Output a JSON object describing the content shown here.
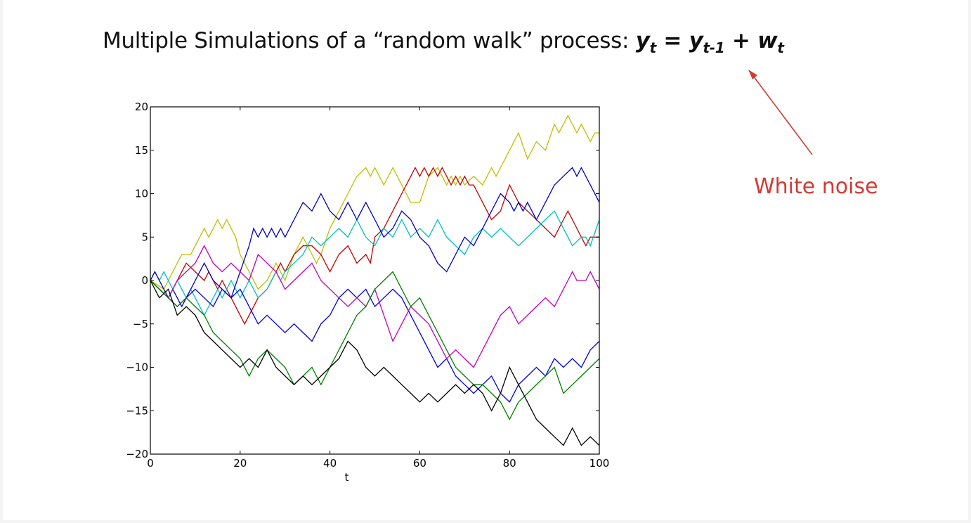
{
  "slide": {
    "title_prefix": "Multiple Simulations of a “random walk” process: ",
    "eq_y": "y",
    "eq_y_sub": "t",
    "eq_eq": " = ",
    "eq_y2": "y",
    "eq_y2_sub": "t-1",
    "eq_plus": " + ",
    "eq_w": "w",
    "eq_w_sub": "t",
    "annotation": "White noise",
    "annotation_color": "#d33a35"
  },
  "chart_data": {
    "type": "line",
    "title": "",
    "xlabel": "t",
    "ylabel": "",
    "xlim": [
      0,
      100
    ],
    "ylim": [
      -20,
      20
    ],
    "xticks": [
      "0",
      "20",
      "40",
      "60",
      "80",
      "100"
    ],
    "yticks": [
      "20",
      "15",
      "10",
      "5",
      "0",
      "−5",
      "−10",
      "−15",
      "−20"
    ],
    "grid": false,
    "legend": "none",
    "series": [
      {
        "color": "#bfbf00",
        "x": [
          0,
          3,
          5,
          7,
          9,
          11,
          12,
          13,
          14,
          15,
          16,
          17,
          18,
          19,
          20,
          22,
          24,
          26,
          28,
          30,
          32,
          34,
          35,
          36,
          37,
          38,
          40,
          42,
          44,
          46,
          48,
          49,
          50,
          51,
          52,
          53,
          54,
          56,
          58,
          60,
          62,
          64,
          65,
          66,
          67,
          68,
          69,
          70,
          72,
          74,
          75,
          76,
          77,
          78,
          80,
          82,
          84,
          86,
          88,
          90,
          91,
          92,
          93,
          94,
          95,
          96,
          97,
          98,
          99,
          100
        ],
        "y": [
          0,
          -1,
          1,
          3,
          3,
          5,
          6,
          5,
          6,
          7,
          6,
          7,
          6,
          5,
          3,
          1,
          -1,
          0,
          2,
          0,
          3,
          5,
          4,
          3,
          2,
          3,
          6,
          8,
          10,
          12,
          13,
          12,
          13,
          12,
          11,
          12,
          13,
          11,
          9,
          9,
          12,
          13,
          12,
          11,
          12,
          11,
          12,
          11,
          12,
          11,
          12,
          13,
          12,
          13,
          15,
          17,
          14,
          16,
          15,
          18,
          17,
          18,
          19,
          18,
          17,
          18,
          17,
          16,
          17,
          17
        ]
      },
      {
        "color": "#bf0000",
        "x": [
          0,
          2,
          4,
          6,
          8,
          10,
          12,
          13,
          14,
          15,
          16,
          17,
          18,
          20,
          21,
          22,
          23,
          24,
          26,
          28,
          29,
          30,
          32,
          34,
          36,
          38,
          40,
          42,
          44,
          45,
          46,
          48,
          49,
          50,
          52,
          54,
          56,
          58,
          59,
          60,
          61,
          62,
          63,
          64,
          65,
          66,
          67,
          68,
          69,
          70,
          71,
          72,
          74,
          76,
          78,
          80,
          81,
          82,
          84,
          86,
          88,
          90,
          92,
          93,
          94,
          96,
          97,
          98,
          99,
          100
        ],
        "y": [
          0,
          -1,
          -2,
          0,
          2,
          1,
          0,
          1,
          0,
          -1,
          0,
          -1,
          -2,
          -4,
          -5,
          -4,
          -3,
          -2,
          -1,
          1,
          2,
          1,
          3,
          4,
          4,
          3,
          1,
          3,
          4,
          3,
          2,
          3,
          2,
          5,
          6,
          8,
          10,
          12,
          13,
          12,
          13,
          12,
          13,
          12,
          13,
          12,
          11,
          12,
          11,
          12,
          11,
          11,
          9,
          7,
          8,
          11,
          10,
          9,
          8,
          7,
          6,
          5,
          7,
          8,
          7,
          5,
          4,
          5,
          5,
          5
        ]
      },
      {
        "color": "#00bfbf",
        "x": [
          0,
          1,
          2,
          3,
          4,
          5,
          6,
          7,
          8,
          9,
          10,
          11,
          12,
          13,
          14,
          15,
          16,
          17,
          18,
          19,
          20,
          22,
          24,
          26,
          28,
          29,
          30,
          32,
          34,
          36,
          38,
          40,
          42,
          44,
          46,
          48,
          50,
          52,
          54,
          56,
          58,
          60,
          62,
          64,
          66,
          68,
          70,
          72,
          74,
          76,
          78,
          80,
          82,
          84,
          86,
          88,
          90,
          92,
          94,
          96,
          97,
          98,
          100
        ],
        "y": [
          0,
          1,
          0,
          1,
          0,
          -1,
          0,
          -1,
          -2,
          -1,
          -2,
          -3,
          -4,
          -3,
          -2,
          -1,
          -2,
          -1,
          0,
          -1,
          -2,
          0,
          -2,
          -1,
          1,
          0,
          1,
          2,
          3,
          5,
          4,
          5,
          6,
          5,
          7,
          5,
          4,
          6,
          5,
          7,
          5,
          6,
          5,
          7,
          5,
          4,
          3,
          5,
          6,
          5,
          6,
          5,
          4,
          5,
          6,
          7,
          8,
          6,
          4,
          5,
          5,
          4,
          7
        ]
      },
      {
        "color": "#0000bf",
        "x": [
          0,
          1,
          2,
          3,
          4,
          5,
          6,
          7,
          8,
          9,
          10,
          11,
          12,
          13,
          14,
          16,
          18,
          20,
          22,
          23,
          24,
          25,
          26,
          27,
          28,
          29,
          30,
          32,
          34,
          36,
          38,
          40,
          42,
          44,
          46,
          48,
          50,
          52,
          54,
          56,
          58,
          60,
          62,
          64,
          66,
          68,
          70,
          72,
          74,
          76,
          78,
          80,
          81,
          82,
          83,
          84,
          85,
          86,
          88,
          90,
          92,
          94,
          95,
          96,
          97,
          98,
          100
        ],
        "y": [
          0,
          1,
          0,
          -1,
          -2,
          -1,
          -2,
          -3,
          -2,
          -1,
          0,
          1,
          2,
          1,
          0,
          -1,
          -2,
          1,
          4,
          6,
          5,
          6,
          5,
          6,
          5,
          6,
          5,
          7,
          9,
          8,
          10,
          8,
          7,
          9,
          7,
          9,
          7,
          5,
          6,
          8,
          7,
          5,
          4,
          2,
          1,
          3,
          5,
          4,
          6,
          8,
          10,
          9,
          8,
          9,
          8,
          9,
          8,
          7,
          9,
          11,
          12,
          13,
          12,
          13,
          12,
          11,
          9
        ]
      },
      {
        "color": "#0000dd",
        "x": [
          0,
          2,
          4,
          6,
          8,
          10,
          12,
          14,
          15,
          16,
          18,
          20,
          22,
          24,
          26,
          28,
          30,
          32,
          34,
          36,
          38,
          40,
          42,
          44,
          46,
          48,
          50,
          52,
          54,
          56,
          58,
          60,
          62,
          64,
          66,
          68,
          70,
          72,
          74,
          76,
          78,
          80,
          82,
          84,
          86,
          88,
          90,
          92,
          94,
          96,
          98,
          100
        ],
        "y": [
          0,
          -1,
          -2,
          -3,
          -2,
          -1,
          -2,
          -3,
          -2,
          -1,
          -2,
          -1,
          -3,
          -5,
          -4,
          -5,
          -6,
          -5,
          -6,
          -7,
          -5,
          -4,
          -2,
          -1,
          -2,
          -1,
          -3,
          -2,
          -1,
          -2,
          -4,
          -6,
          -8,
          -10,
          -9,
          -11,
          -12,
          -13,
          -12,
          -11,
          -13,
          -14,
          -12,
          -11,
          -10,
          -11,
          -9,
          -10,
          -9,
          -10,
          -8,
          -7
        ]
      },
      {
        "color": "#bf00bf",
        "x": [
          0,
          2,
          4,
          6,
          8,
          10,
          12,
          14,
          16,
          18,
          20,
          22,
          24,
          26,
          28,
          30,
          32,
          34,
          36,
          38,
          40,
          42,
          44,
          46,
          48,
          50,
          52,
          54,
          56,
          58,
          60,
          62,
          64,
          66,
          68,
          70,
          72,
          74,
          76,
          78,
          80,
          82,
          84,
          86,
          88,
          90,
          91,
          92,
          93,
          94,
          95,
          96,
          97,
          98,
          100
        ],
        "y": [
          0,
          -1,
          -2,
          0,
          1,
          2,
          4,
          2,
          1,
          2,
          1,
          0,
          3,
          2,
          1,
          -1,
          0,
          1,
          2,
          0,
          -1,
          -2,
          -3,
          -2,
          -3,
          -1,
          -4,
          -7,
          -5,
          -3,
          -4,
          -5,
          -7,
          -9,
          -8,
          -9,
          -10,
          -8,
          -6,
          -4,
          -3,
          -5,
          -4,
          -3,
          -2,
          -3,
          -2,
          -1,
          0,
          1,
          0,
          0,
          0,
          1,
          -1
        ]
      },
      {
        "color": "#007f00",
        "x": [
          0,
          2,
          4,
          6,
          8,
          10,
          12,
          14,
          16,
          18,
          20,
          22,
          24,
          26,
          28,
          30,
          32,
          34,
          36,
          38,
          40,
          42,
          44,
          46,
          48,
          50,
          52,
          54,
          56,
          58,
          60,
          62,
          64,
          66,
          68,
          70,
          72,
          74,
          76,
          78,
          80,
          82,
          84,
          86,
          88,
          90,
          92,
          94,
          96,
          98,
          100
        ],
        "y": [
          0,
          -1,
          -2,
          -3,
          -2,
          -3,
          -4,
          -6,
          -7,
          -8,
          -9,
          -11,
          -9,
          -8,
          -9,
          -10,
          -12,
          -11,
          -10,
          -12,
          -10,
          -8,
          -6,
          -4,
          -3,
          -1,
          0,
          1,
          -1,
          -3,
          -2,
          -4,
          -6,
          -8,
          -10,
          -11,
          -12,
          -12,
          -13,
          -14,
          -16,
          -14,
          -13,
          -12,
          -11,
          -10,
          -13,
          -12,
          -11,
          -10,
          -9
        ]
      },
      {
        "color": "#000000",
        "x": [
          0,
          2,
          4,
          6,
          8,
          10,
          12,
          14,
          16,
          18,
          20,
          22,
          24,
          26,
          28,
          30,
          32,
          34,
          36,
          38,
          40,
          42,
          44,
          46,
          48,
          50,
          52,
          54,
          56,
          58,
          60,
          62,
          64,
          66,
          68,
          70,
          72,
          74,
          76,
          78,
          80,
          82,
          84,
          86,
          88,
          90,
          92,
          94,
          96,
          98,
          100
        ],
        "y": [
          0,
          -2,
          -1,
          -4,
          -3,
          -4,
          -6,
          -7,
          -8,
          -9,
          -10,
          -9,
          -10,
          -8,
          -10,
          -11,
          -12,
          -11,
          -12,
          -11,
          -10,
          -9,
          -7,
          -8,
          -10,
          -11,
          -10,
          -11,
          -12,
          -13,
          -14,
          -13,
          -14,
          -13,
          -12,
          -13,
          -12,
          -13,
          -15,
          -13,
          -10,
          -12,
          -14,
          -16,
          -17,
          -18,
          -19,
          -17,
          -19,
          -18,
          -19
        ]
      }
    ]
  }
}
